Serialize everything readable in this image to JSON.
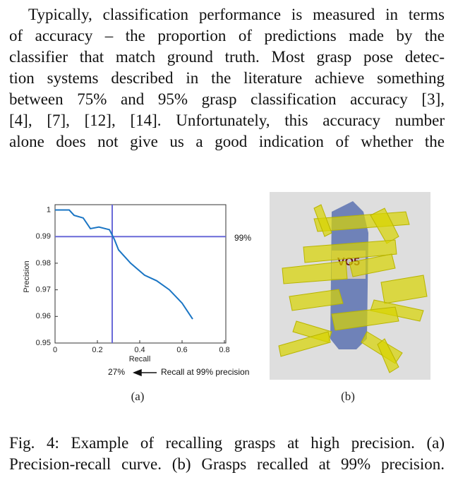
{
  "paragraph": [
    "Typically, classification performance is measured in terms",
    "of accuracy – the proportion of predictions made by the",
    "classifier that match ground truth. Most grasp pose detec-",
    "tion systems described in the literature achieve something",
    "between 75% and 95% grasp classification accuracy [3],",
    "[4], [7], [12], [14]. Unfortunately, this accuracy number",
    "alone does not give us a good indication of whether the"
  ],
  "chart_data": {
    "type": "line",
    "x_label": "Recall",
    "y_label": "Precision",
    "x": [
      0,
      0.067,
      0.09,
      0.133,
      0.167,
      0.207,
      0.257,
      0.28,
      0.3,
      0.357,
      0.423,
      0.48,
      0.54,
      0.6,
      0.65
    ],
    "values": [
      1.0,
      1.0,
      0.998,
      0.997,
      0.993,
      0.9936,
      0.9926,
      0.989,
      0.985,
      0.98,
      0.9755,
      0.9734,
      0.97,
      0.965,
      0.959
    ],
    "color": "#1a75c4",
    "xlim": [
      0,
      0.8
    ],
    "ylim": [
      0.95,
      1.002
    ],
    "xticks": [
      0,
      0.2,
      0.4,
      0.6,
      0.8
    ],
    "yticks": [
      0.95,
      0.96,
      0.97,
      0.98,
      0.99,
      1
    ],
    "reference_lines": {
      "color": "#6a6ad8",
      "y": 0.99,
      "x": 0.27
    },
    "annotations": {
      "y_ref": "99%",
      "x_ref": "27%",
      "note": "Recall at 99% precision"
    }
  },
  "image_text": "VO5",
  "subfigure_labels": [
    "(a)",
    "(b)"
  ],
  "caption": [
    "Fig. 4: Example of recalling grasps at high precision. (a)",
    "Precision-recall curve. (b) Grasps recalled at 99% precision."
  ]
}
